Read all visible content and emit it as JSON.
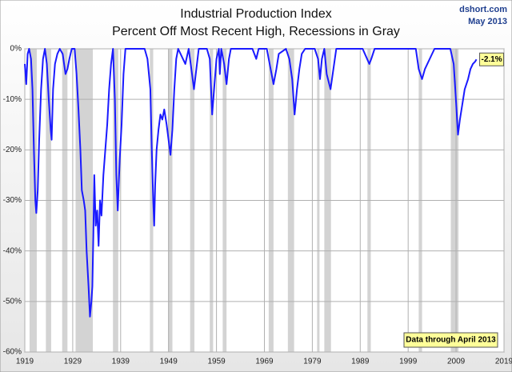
{
  "chart_data": {
    "type": "line",
    "title": "Industrial Production Index",
    "subtitle": "Percent Off Most Recent High, Recessions in Gray",
    "source": "dshort.com",
    "date": "May 2013",
    "last_value_label": "-2.1%",
    "note": "Data through April 2013",
    "xlim": [
      1919,
      2019
    ],
    "xticks": [
      1919,
      1929,
      1939,
      1949,
      1959,
      1969,
      1979,
      1989,
      1999,
      2009,
      2019
    ],
    "ylim": [
      -60,
      0
    ],
    "yticks": [
      {
        "value": 0,
        "label": "0%"
      },
      {
        "value": -10,
        "label": "-10%"
      },
      {
        "value": -20,
        "label": "-20%"
      },
      {
        "value": -30,
        "label": "-30%"
      },
      {
        "value": -40,
        "label": "-40%"
      },
      {
        "value": -50,
        "label": "-50%"
      },
      {
        "value": -60,
        "label": "-60%"
      }
    ],
    "grid": true,
    "recession_color": "#d3d3d3",
    "recessions": [
      [
        1920.0,
        1921.5
      ],
      [
        1923.4,
        1924.5
      ],
      [
        1926.8,
        1927.9
      ],
      [
        1929.6,
        1933.2
      ],
      [
        1937.4,
        1938.5
      ],
      [
        1945.1,
        1945.8
      ],
      [
        1948.9,
        1949.8
      ],
      [
        1953.5,
        1954.4
      ],
      [
        1957.6,
        1958.3
      ],
      [
        1960.3,
        1961.1
      ],
      [
        1969.9,
        1970.9
      ],
      [
        1973.9,
        1975.2
      ],
      [
        1980.0,
        1980.5
      ],
      [
        1981.5,
        1982.9
      ],
      [
        1990.5,
        1991.2
      ],
      [
        2001.2,
        2001.9
      ],
      [
        2007.9,
        2009.5
      ]
    ],
    "x": [
      1919.0,
      1919.3,
      1919.6,
      1919.9,
      1920.3,
      1920.6,
      1920.9,
      1921.2,
      1921.4,
      1921.7,
      1922.0,
      1922.4,
      1922.8,
      1923.2,
      1923.6,
      1924.0,
      1924.4,
      1924.6,
      1924.9,
      1925.3,
      1925.8,
      1926.3,
      1926.9,
      1927.5,
      1927.9,
      1928.3,
      1928.8,
      1929.4,
      1929.8,
      1930.2,
      1930.6,
      1930.9,
      1931.3,
      1931.6,
      1931.9,
      1932.3,
      1932.6,
      1932.9,
      1933.1,
      1933.3,
      1933.5,
      1933.8,
      1934.1,
      1934.4,
      1934.7,
      1935.0,
      1935.4,
      1935.8,
      1936.2,
      1936.6,
      1937.0,
      1937.4,
      1937.8,
      1938.1,
      1938.4,
      1938.8,
      1939.2,
      1939.6,
      1940.0,
      1944.0,
      1944.6,
      1945.2,
      1945.5,
      1945.8,
      1946.0,
      1946.2,
      1946.5,
      1946.9,
      1947.3,
      1947.7,
      1948.1,
      1948.6,
      1949.0,
      1949.4,
      1949.8,
      1950.2,
      1950.6,
      1951.0,
      1952.5,
      1953.2,
      1953.9,
      1954.3,
      1954.8,
      1955.3,
      1957.0,
      1957.6,
      1958.1,
      1958.5,
      1959.0,
      1959.5,
      1959.7,
      1960.0,
      1960.6,
      1961.1,
      1961.6,
      1962.0,
      1966.5,
      1967.3,
      1967.8,
      1969.5,
      1970.3,
      1970.9,
      1971.5,
      1972.0,
      1973.5,
      1974.2,
      1974.8,
      1975.3,
      1975.8,
      1976.3,
      1976.8,
      1977.5,
      1979.5,
      1980.2,
      1980.6,
      1981.0,
      1981.5,
      1982.0,
      1982.8,
      1983.4,
      1984.0,
      1989.5,
      1990.9,
      1991.3,
      1992.0,
      2000.6,
      2001.2,
      2001.9,
      2002.5,
      2003.5,
      2004.5,
      2007.8,
      2008.5,
      2008.9,
      2009.4,
      2009.8,
      2010.3,
      2010.8,
      2011.5,
      2012.0,
      2012.5,
      2013.0,
      2013.25
    ],
    "series": [
      {
        "name": "Industrial Production Index",
        "color": "#1a1aff",
        "values": [
          -3,
          -7,
          -1,
          0,
          -2,
          -8,
          -20,
          -30,
          -32.5,
          -28,
          -18,
          -8,
          -2,
          0,
          -3,
          -10,
          -16,
          -18,
          -8,
          -3,
          -1,
          0,
          -1,
          -5,
          -4,
          -2,
          0,
          0,
          -5,
          -12,
          -20,
          -28,
          -30,
          -32,
          -40,
          -47,
          -53,
          -50,
          -47,
          -37,
          -25,
          -35,
          -32,
          -39,
          -30,
          -33,
          -25,
          -20,
          -15,
          -8,
          -3,
          0,
          -10,
          -25,
          -32,
          -22,
          -15,
          -5,
          0,
          0,
          -2,
          -8,
          -20,
          -30,
          -35,
          -27,
          -20,
          -16,
          -13,
          -14,
          -12,
          -15,
          -18,
          -21,
          -16,
          -8,
          -2,
          0,
          -3,
          0,
          -5,
          -8,
          -4,
          0,
          0,
          -2,
          -13,
          -8,
          -2,
          0,
          -5,
          0,
          -3,
          -7,
          -2,
          0,
          0,
          -2,
          0,
          0,
          -4,
          -7,
          -4,
          -1,
          0,
          -2,
          -6,
          -13,
          -8,
          -4,
          -1,
          0,
          0,
          -2,
          -6,
          -2,
          0,
          -5,
          -8,
          -4,
          0,
          0,
          -3,
          -2,
          0,
          0,
          -4,
          -6,
          -4,
          -2,
          0,
          0,
          -3,
          -9,
          -17,
          -14,
          -11,
          -8,
          -6,
          -4,
          -3,
          -2.5,
          -2.1
        ]
      }
    ]
  }
}
